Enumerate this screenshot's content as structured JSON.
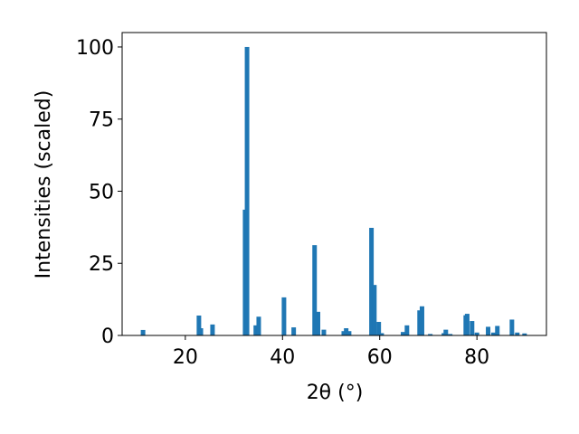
{
  "chart_data": {
    "type": "bar",
    "x_label": "2θ (°)",
    "y_label": "Intensities (scaled)",
    "color": "#1f77b4",
    "x": [
      11.3,
      22.8,
      23.2,
      25.6,
      32.3,
      32.7,
      34.5,
      35.1,
      40.3,
      42.3,
      46.6,
      47.3,
      48.5,
      52.6,
      53.1,
      53.7,
      58.3,
      58.9,
      59.8,
      60.4,
      64.8,
      65.6,
      68.2,
      68.7,
      70.4,
      73.2,
      73.6,
      74.5,
      77.7,
      78.0,
      79.0,
      80.0,
      82.3,
      83.4,
      84.2,
      87.2,
      88.3,
      89.8
    ],
    "values": [
      1.9,
      6.9,
      2.5,
      3.8,
      43.6,
      100,
      3.5,
      6.5,
      13.2,
      2.8,
      31.3,
      8.2,
      2,
      1.5,
      2.5,
      1.5,
      37.3,
      17.5,
      4.7,
      0.8,
      1.2,
      3.5,
      8.7,
      10.1,
      0.5,
      0.8,
      2,
      0.5,
      7,
      7.5,
      5,
      1,
      3,
      1,
      3.3,
      5.5,
      1,
      0.7
    ],
    "xlim": [
      7,
      94.3
    ],
    "ylim": [
      0,
      105
    ],
    "xticks": [
      20,
      40,
      60,
      80
    ],
    "yticks": [
      0,
      25,
      50,
      75,
      100
    ]
  }
}
